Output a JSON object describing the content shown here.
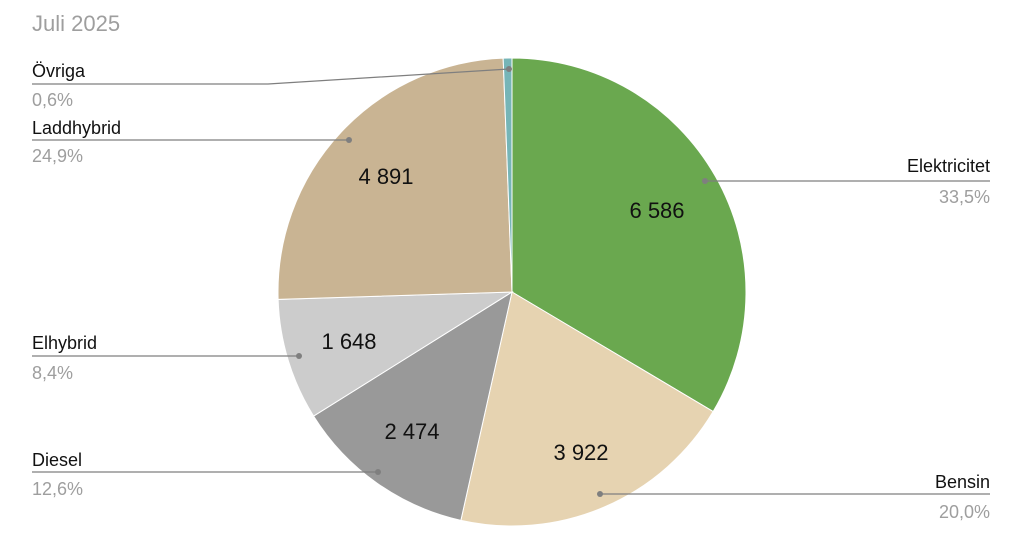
{
  "chart_data": {
    "type": "pie",
    "title": "Juli 2025",
    "slices": [
      {
        "name": "Elektricitet",
        "value": 6586,
        "value_label": "6 586",
        "percent_label": "33,5%",
        "color": "#6aa84f"
      },
      {
        "name": "Bensin",
        "value": 3922,
        "value_label": "3 922",
        "percent_label": "20,0%",
        "color": "#e6d3b1"
      },
      {
        "name": "Diesel",
        "value": 2474,
        "value_label": "2 474",
        "percent_label": "12,6%",
        "color": "#999999"
      },
      {
        "name": "Elhybrid",
        "value": 1648,
        "value_label": "1 648",
        "percent_label": "8,4%",
        "color": "#cccccc"
      },
      {
        "name": "Laddhybrid",
        "value": 4891,
        "value_label": "4 891",
        "percent_label": "24,9%",
        "color": "#c9b493"
      },
      {
        "name": "Övriga",
        "value": 118,
        "value_label": "",
        "percent_label": "0,6%",
        "color": "#76b5b7"
      }
    ],
    "colors": {
      "leader_line": "#7f7f7f",
      "title": "#9e9e9e",
      "percent_text": "#9e9e9e"
    }
  }
}
